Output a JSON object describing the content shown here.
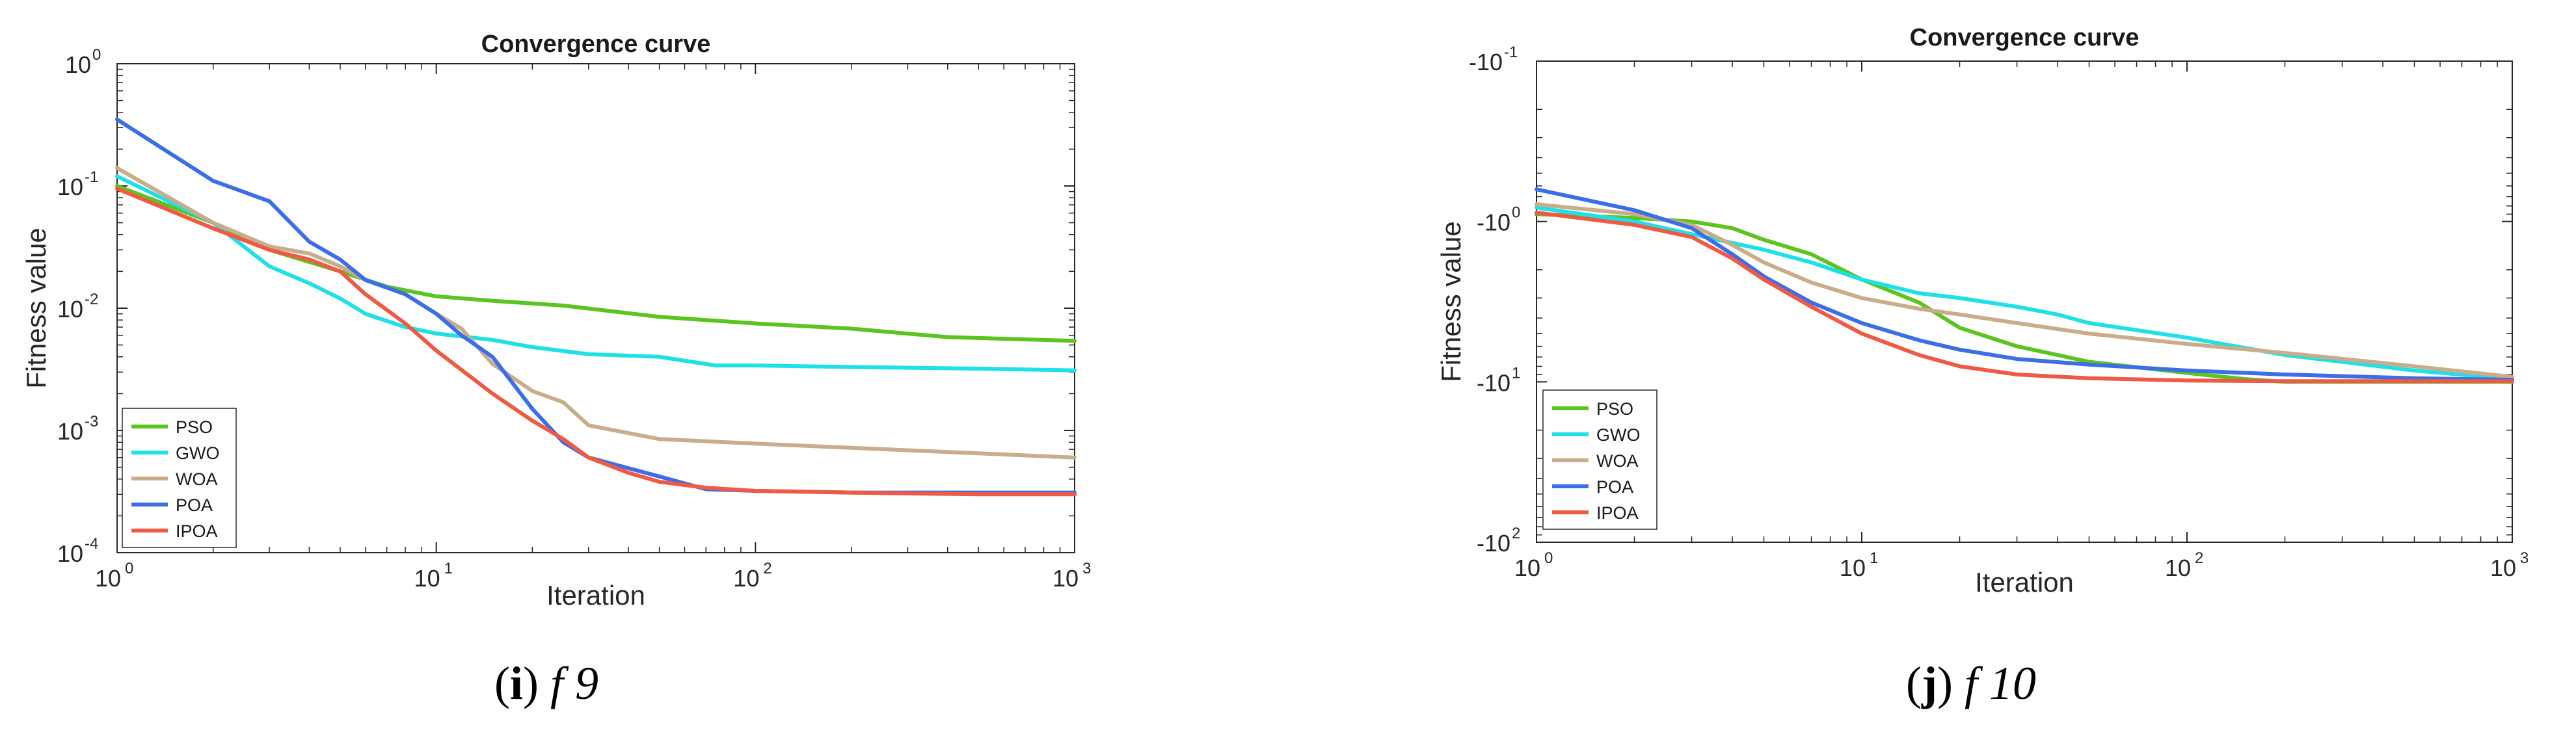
{
  "chart_data": [
    {
      "type": "line",
      "panel": "i",
      "title": "Convergence curve",
      "xlabel": "Iteration",
      "ylabel": "Fitness value",
      "xscale": "log",
      "yscale": "log",
      "xlim": [
        1,
        1000
      ],
      "ylim": [
        0.0001,
        1
      ],
      "xticks": [
        {
          "base": "10",
          "exp": "0"
        },
        {
          "base": "10",
          "exp": "1"
        },
        {
          "base": "10",
          "exp": "2"
        },
        {
          "base": "10",
          "exp": "3"
        }
      ],
      "yticks": [
        {
          "base": "10",
          "exp": "0"
        },
        {
          "base": "10",
          "exp": "-1"
        },
        {
          "base": "10",
          "exp": "-2"
        },
        {
          "base": "10",
          "exp": "-3"
        },
        {
          "base": "10",
          "exp": "-4"
        }
      ],
      "legend_position": "bottom-left",
      "caption": {
        "letter": "i",
        "func": "f 9"
      },
      "series": [
        {
          "name": "PSO",
          "color": "#5cc41f",
          "x": [
            1,
            2,
            3,
            5,
            7,
            10,
            15,
            25,
            50,
            100,
            200,
            400,
            1000
          ],
          "y": [
            0.1,
            0.05,
            0.03,
            0.02,
            0.015,
            0.0125,
            0.0115,
            0.0105,
            0.0085,
            0.0075,
            0.0068,
            0.0058,
            0.0054
          ]
        },
        {
          "name": "GWO",
          "color": "#1fe0e6",
          "x": [
            1,
            2,
            3,
            4,
            5,
            6,
            8,
            10,
            15,
            20,
            30,
            50,
            75,
            100,
            200,
            500,
            1000
          ],
          "y": [
            0.12,
            0.05,
            0.022,
            0.016,
            0.012,
            0.009,
            0.007,
            0.0062,
            0.0055,
            0.0048,
            0.0042,
            0.004,
            0.0034,
            0.0034,
            0.0033,
            0.0032,
            0.0031
          ]
        },
        {
          "name": "WOA",
          "color": "#c9ad8a",
          "x": [
            1,
            2,
            3,
            4,
            5,
            6,
            8,
            10,
            12,
            15,
            20,
            25,
            30,
            50,
            100,
            200,
            500,
            1000
          ],
          "y": [
            0.14,
            0.05,
            0.032,
            0.028,
            0.022,
            0.017,
            0.013,
            0.009,
            0.0068,
            0.0035,
            0.0021,
            0.0017,
            0.0011,
            0.00085,
            0.00078,
            0.00072,
            0.00065,
            0.0006
          ]
        },
        {
          "name": "POA",
          "color": "#3b6ee8",
          "x": [
            1,
            2,
            3,
            4,
            5,
            6,
            8,
            10,
            12,
            15,
            20,
            25,
            30,
            50,
            70,
            100,
            200,
            500,
            1000
          ],
          "y": [
            0.35,
            0.11,
            0.075,
            0.035,
            0.025,
            0.017,
            0.013,
            0.009,
            0.006,
            0.004,
            0.0015,
            0.0008,
            0.0006,
            0.00042,
            0.00033,
            0.00032,
            0.00031,
            0.00031,
            0.00031
          ]
        },
        {
          "name": "IPOA",
          "color": "#f05a44",
          "x": [
            1,
            2,
            3,
            4,
            5,
            6,
            8,
            10,
            15,
            20,
            25,
            30,
            40,
            50,
            70,
            100,
            200,
            500,
            1000
          ],
          "y": [
            0.095,
            0.045,
            0.03,
            0.025,
            0.02,
            0.013,
            0.0075,
            0.0045,
            0.002,
            0.0012,
            0.00085,
            0.0006,
            0.00045,
            0.00038,
            0.00034,
            0.00032,
            0.00031,
            0.0003,
            0.0003
          ]
        }
      ]
    },
    {
      "type": "line",
      "panel": "j",
      "title": "Convergence curve",
      "xlabel": "Iteration",
      "ylabel": "Fitness value",
      "xscale": "log",
      "yscale": "log",
      "xlim": [
        1,
        1000
      ],
      "ylim_note": "axis ticks labeled -10^-1 (top), -10^0, -10^1, -10^2 (bottom); values shown as magnitudes",
      "ylim": [
        0.1,
        100
      ],
      "xticks": [
        {
          "base": "10",
          "exp": "0"
        },
        {
          "base": "10",
          "exp": "1"
        },
        {
          "base": "10",
          "exp": "2"
        },
        {
          "base": "10",
          "exp": "3"
        }
      ],
      "yticks": [
        {
          "base": "-10",
          "exp": "-1"
        },
        {
          "base": "-10",
          "exp": "0"
        },
        {
          "base": "-10",
          "exp": "1"
        },
        {
          "base": "-10",
          "exp": "2"
        }
      ],
      "legend_position": "bottom-left",
      "caption": {
        "letter": "j",
        "func": "f 10"
      },
      "series": [
        {
          "name": "PSO",
          "color": "#5cc41f",
          "x": [
            1,
            2,
            3,
            4,
            5,
            7,
            10,
            15,
            20,
            30,
            50,
            100,
            150,
            200,
            1000
          ],
          "y": [
            0.9,
            0.95,
            1.0,
            1.1,
            1.3,
            1.6,
            2.3,
            3.2,
            4.6,
            6.0,
            7.5,
            8.8,
            9.6,
            10.0,
            10.0
          ]
        },
        {
          "name": "GWO",
          "color": "#1fe0e6",
          "x": [
            1,
            2,
            3,
            5,
            7,
            10,
            15,
            20,
            30,
            40,
            50,
            100,
            200,
            500,
            1000
          ],
          "y": [
            0.82,
            1.0,
            1.2,
            1.5,
            1.8,
            2.3,
            2.8,
            3.0,
            3.4,
            3.8,
            4.3,
            5.3,
            6.8,
            8.5,
            9.6
          ]
        },
        {
          "name": "WOA",
          "color": "#c9ad8a",
          "x": [
            1,
            2,
            3,
            4,
            5,
            7,
            10,
            15,
            20,
            30,
            50,
            100,
            200,
            500,
            1000
          ],
          "y": [
            0.78,
            0.9,
            1.05,
            1.4,
            1.8,
            2.4,
            3.0,
            3.5,
            3.8,
            4.3,
            5.0,
            5.8,
            6.6,
            8.0,
            9.3
          ]
        },
        {
          "name": "POA",
          "color": "#3b6ee8",
          "x": [
            1,
            2,
            3,
            4,
            5,
            7,
            10,
            15,
            20,
            30,
            50,
            100,
            200,
            500,
            1000
          ],
          "y": [
            0.63,
            0.85,
            1.1,
            1.6,
            2.2,
            3.2,
            4.3,
            5.5,
            6.3,
            7.2,
            7.8,
            8.5,
            9.0,
            9.5,
            9.7
          ]
        },
        {
          "name": "IPOA",
          "color": "#f05a44",
          "x": [
            1,
            2,
            3,
            4,
            5,
            7,
            10,
            15,
            20,
            30,
            50,
            100,
            200,
            500,
            1000
          ],
          "y": [
            0.88,
            1.05,
            1.25,
            1.7,
            2.3,
            3.4,
            5.0,
            6.8,
            8.0,
            9.0,
            9.5,
            9.8,
            9.9,
            9.9,
            9.9
          ]
        }
      ]
    }
  ]
}
